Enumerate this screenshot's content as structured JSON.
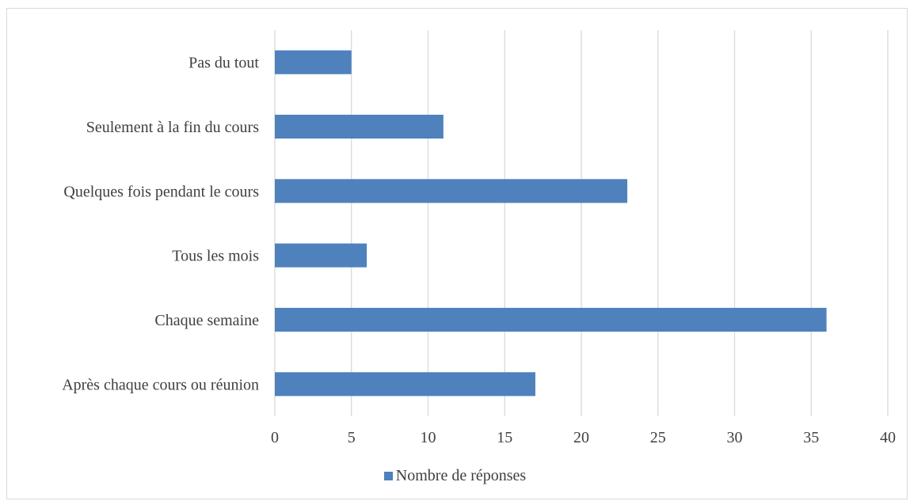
{
  "chart_data": {
    "type": "bar",
    "orientation": "horizontal",
    "categories": [
      "Après chaque cours ou réunion",
      "Chaque semaine",
      "Tous les mois",
      "Quelques fois pendant le cours",
      "Seulement à la fin du cours",
      "Pas du tout"
    ],
    "series": [
      {
        "name": "Nombre de réponses",
        "values": [
          17,
          36,
          6,
          23,
          11,
          5
        ],
        "color": "#4f81bd"
      }
    ],
    "xlim": [
      0,
      40
    ],
    "xticks": [
      "0",
      "5",
      "10",
      "15",
      "20",
      "25",
      "30",
      "35",
      "40"
    ],
    "grid": "vertical",
    "legend_position": "bottom",
    "title": "",
    "xlabel": "",
    "ylabel": ""
  }
}
